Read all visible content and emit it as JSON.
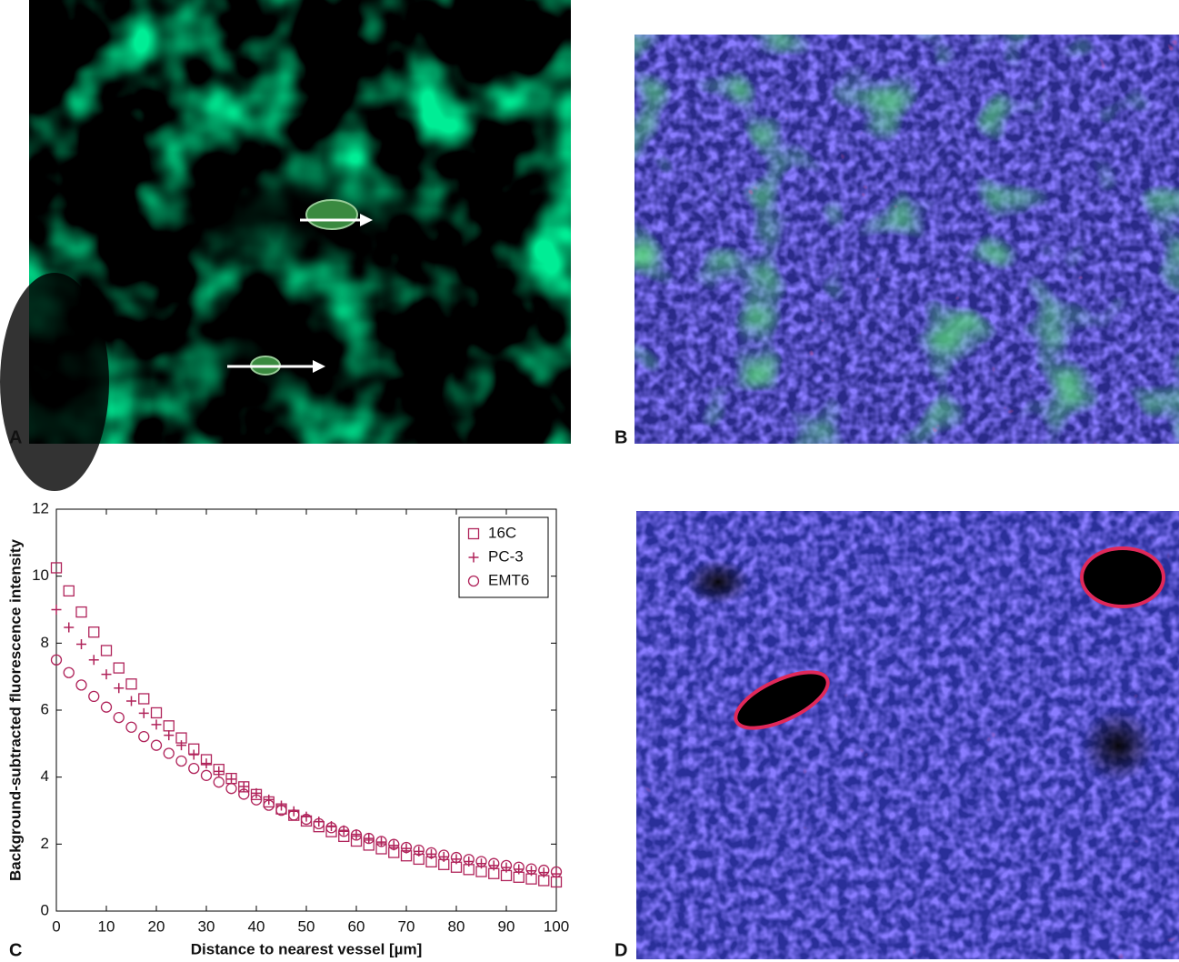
{
  "panels": [
    {
      "label": "A"
    },
    {
      "label": "B"
    },
    {
      "label": "C"
    },
    {
      "label": "D"
    }
  ],
  "chart_data": {
    "type": "scatter",
    "xlabel": "Distance to nearest vessel [µm]",
    "ylabel": "Background-subtracted fluorescence intensity",
    "x": [
      0,
      2.5,
      5,
      7.5,
      10,
      12.5,
      15,
      17.5,
      20,
      22.5,
      25,
      27.5,
      30,
      32.5,
      35,
      37.5,
      40,
      42.5,
      45,
      47.5,
      50,
      52.5,
      55,
      57.5,
      60,
      62.5,
      65,
      67.5,
      70,
      72.5,
      75,
      77.5,
      80,
      82.5,
      85,
      87.5,
      90,
      92.5,
      95,
      97.5,
      100
    ],
    "series": [
      {
        "name": "16C",
        "color": "#b0235a",
        "marker": "square",
        "values": [
          10.25,
          9.56,
          8.93,
          8.33,
          7.78,
          7.26,
          6.78,
          6.34,
          5.92,
          5.53,
          5.17,
          4.84,
          4.52,
          4.23,
          3.96,
          3.71,
          3.48,
          3.26,
          3.05,
          2.86,
          2.69,
          2.52,
          2.37,
          2.23,
          2.09,
          1.97,
          1.86,
          1.75,
          1.65,
          1.55,
          1.47,
          1.39,
          1.31,
          1.24,
          1.18,
          1.12,
          1.06,
          1.01,
          0.96,
          0.91,
          0.87
        ]
      },
      {
        "name": "PC-3",
        "color": "#b0235a",
        "marker": "plus",
        "values": [
          9.0,
          8.47,
          7.97,
          7.5,
          7.07,
          6.66,
          6.27,
          5.91,
          5.57,
          5.25,
          4.95,
          4.67,
          4.41,
          4.17,
          3.94,
          3.72,
          3.52,
          3.33,
          3.15,
          2.98,
          2.82,
          2.67,
          2.54,
          2.41,
          2.29,
          2.17,
          2.06,
          1.96,
          1.87,
          1.78,
          1.7,
          1.62,
          1.55,
          1.48,
          1.42,
          1.36,
          1.3,
          1.25,
          1.2,
          1.15,
          1.11
        ]
      },
      {
        "name": "EMT6",
        "color": "#b0235a",
        "marker": "circle",
        "values": [
          7.5,
          7.12,
          6.75,
          6.41,
          6.09,
          5.78,
          5.49,
          5.21,
          4.95,
          4.71,
          4.48,
          4.26,
          4.05,
          3.85,
          3.66,
          3.49,
          3.32,
          3.16,
          3.01,
          2.87,
          2.74,
          2.61,
          2.49,
          2.38,
          2.27,
          2.17,
          2.08,
          1.99,
          1.9,
          1.82,
          1.74,
          1.67,
          1.6,
          1.54,
          1.48,
          1.42,
          1.36,
          1.31,
          1.26,
          1.22,
          1.17
        ]
      }
    ],
    "xlim": [
      0,
      100
    ],
    "xticks": [
      0,
      10,
      20,
      30,
      40,
      50,
      60,
      70,
      80,
      90,
      100
    ],
    "ylim": [
      0,
      12
    ],
    "yticks": [
      0,
      2,
      4,
      6,
      8,
      10,
      12
    ],
    "grid": false,
    "legend": "upper right"
  }
}
